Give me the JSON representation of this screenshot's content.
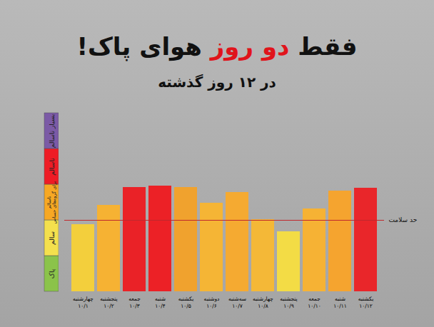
{
  "chart_data": {
    "type": "bar",
    "title": "فقط دو روز هوای پاک!",
    "title_highlight": "دو روز",
    "subtitle": "در ۱۲ روز گذشته",
    "categories": [
      "چهارشنبه\n۱۰/۱",
      "پنجشنبه\n۱۰/۲",
      "جمعه\n۱۰/۳",
      "شنبه\n۱۰/۴",
      "یکشنبه\n۱۰/۵",
      "دوشنبه\n۱۰/۶",
      "سه‌شنبه\n۱۰/۷",
      "چهارشنبه\n۱۰/۸",
      "پنجشنبه\n۱۰/۹",
      "جمعه\n۱۰/۱۰",
      "شنبه\n۱۰/۱۱",
      "یکشنبه\n۱۰/۱۲"
    ],
    "values": [
      94,
      121,
      146,
      148,
      146,
      124,
      139,
      101,
      84,
      116,
      141,
      145
    ],
    "colors": [
      "#f3cf3c",
      "#f6b233",
      "#ea2227",
      "#ec2126",
      "#f0a22e",
      "#f5b535",
      "#f5aa31",
      "#f4b837",
      "#f3dc45",
      "#f6b234",
      "#f5a42f",
      "#e9262a"
    ],
    "ylim": [
      0,
      250
    ],
    "tick_labels": "x",
    "bands": [
      {
        "label": "پاک",
        "from": 0,
        "to": 50,
        "color": "#8bc34a"
      },
      {
        "label": "سالم",
        "from": 50,
        "to": 100,
        "color": "#f4e04d"
      },
      {
        "label": "ناسالم\nبرای گروه‌های حساس",
        "from": 100,
        "to": 150,
        "color": "#f7a823"
      },
      {
        "label": "ناسالم",
        "from": 150,
        "to": 200,
        "color": "#ee1c25"
      },
      {
        "label": "بسیار ناسالم",
        "from": 200,
        "to": 250,
        "color": "#7b5aa6"
      }
    ],
    "reference_line": {
      "value": 100,
      "label": "حد سلامت",
      "color": "#c0282d"
    }
  }
}
